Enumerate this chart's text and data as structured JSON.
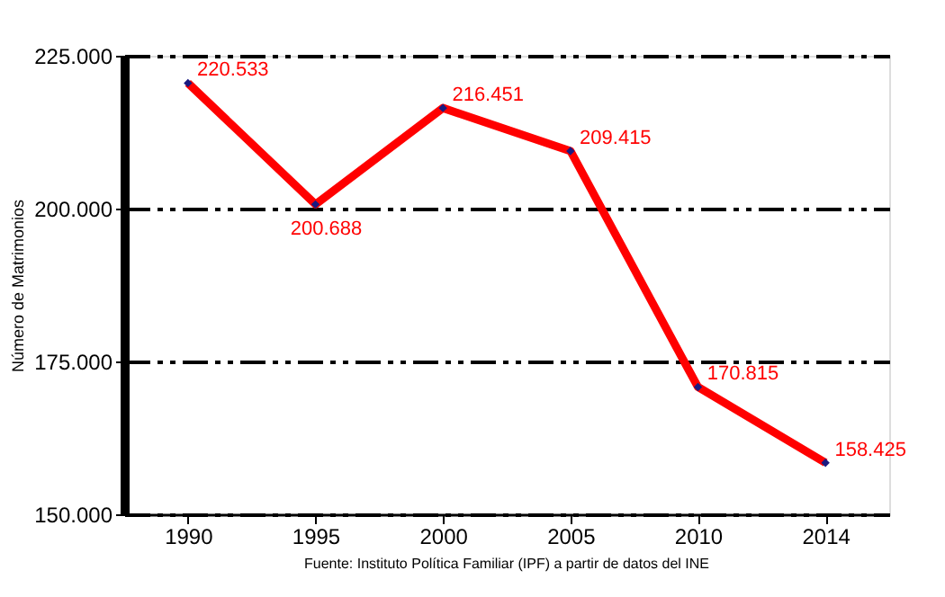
{
  "chart_data": {
    "type": "line",
    "ylabel": "Número de Matrimonios",
    "categories": [
      "1990",
      "1995",
      "2000",
      "2005",
      "2010",
      "2014"
    ],
    "series": [
      {
        "color": "#ff0000",
        "values": [
          220533,
          200688,
          216451,
          209415,
          170815,
          158425
        ],
        "value_labels": [
          "220.533",
          "200.688",
          "216.451",
          "209.415",
          "170.815",
          "158.425"
        ]
      }
    ],
    "ylim": [
      150000,
      225000
    ],
    "yticks": [
      {
        "value": 150000,
        "label": "150.000"
      },
      {
        "value": 175000,
        "label": "175.000"
      },
      {
        "value": 200000,
        "label": "200.000"
      },
      {
        "value": 225000,
        "label": "225.000"
      }
    ],
    "grid": "y",
    "marker": "diamond",
    "line_style": "solid",
    "annotations": [
      "Fuente: Instituto Política Familiar (IPF) a partir de datos del INE"
    ]
  }
}
